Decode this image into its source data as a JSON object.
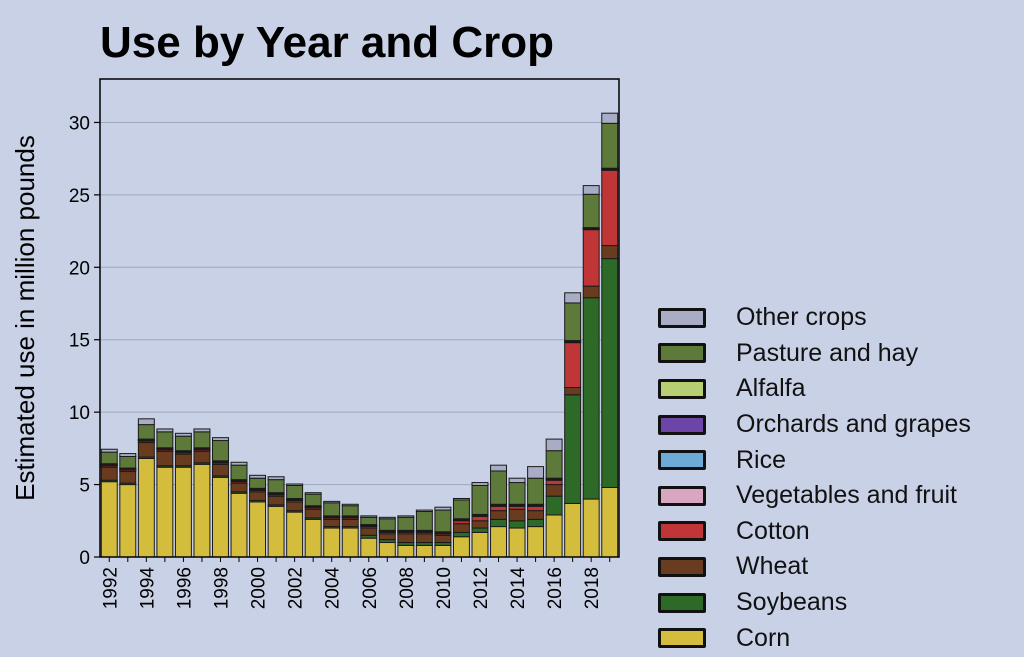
{
  "chart_data": {
    "type": "bar",
    "stacked": true,
    "title": "Use by Year and Crop",
    "ylabel": "Estimated use in million pounds",
    "xlabel": "",
    "ylim": [
      0,
      33
    ],
    "yticks": [
      0,
      5,
      10,
      15,
      20,
      25,
      30
    ],
    "grid": "horizontal",
    "legend_position": "right",
    "categories": [
      "1992",
      "1993",
      "1994",
      "1995",
      "1996",
      "1997",
      "1998",
      "1999",
      "2000",
      "2001",
      "2002",
      "2003",
      "2004",
      "2005",
      "2006",
      "2007",
      "2008",
      "2009",
      "2010",
      "2011",
      "2012",
      "2013",
      "2014",
      "2015",
      "2016",
      "2017",
      "2018",
      "2019"
    ],
    "xtick_labels": [
      "1992",
      "",
      "1994",
      "",
      "1996",
      "",
      "1998",
      "",
      "2000",
      "",
      "2002",
      "",
      "2004",
      "",
      "2006",
      "",
      "2008",
      "",
      "2010",
      "",
      "2012",
      "",
      "2014",
      "",
      "2016",
      "",
      "2018",
      ""
    ],
    "series": [
      {
        "name": "Corn",
        "color": "#d4bd3c",
        "values": [
          5.2,
          5.0,
          6.8,
          6.2,
          6.2,
          6.4,
          5.5,
          4.4,
          3.8,
          3.5,
          3.1,
          2.6,
          2.0,
          2.0,
          1.3,
          1.0,
          0.8,
          0.8,
          0.8,
          1.4,
          1.7,
          2.1,
          2.0,
          2.1,
          2.9,
          3.7,
          4.0,
          4.8
        ]
      },
      {
        "name": "Soybeans",
        "color": "#2e6a27",
        "values": [
          0.1,
          0.1,
          0.1,
          0.1,
          0.1,
          0.1,
          0.1,
          0.1,
          0.1,
          0.1,
          0.1,
          0.1,
          0.1,
          0.1,
          0.2,
          0.2,
          0.2,
          0.2,
          0.2,
          0.3,
          0.3,
          0.5,
          0.5,
          0.5,
          1.3,
          7.5,
          13.9,
          15.8
        ]
      },
      {
        "name": "Wheat",
        "color": "#6a3c1f",
        "values": [
          0.9,
          0.8,
          1.0,
          1.0,
          0.8,
          0.8,
          0.8,
          0.6,
          0.6,
          0.6,
          0.6,
          0.6,
          0.5,
          0.5,
          0.5,
          0.4,
          0.6,
          0.6,
          0.5,
          0.6,
          0.5,
          0.6,
          0.8,
          0.6,
          0.8,
          0.5,
          0.8,
          0.9
        ]
      },
      {
        "name": "Cotton",
        "color": "#c03535",
        "values": [
          0.1,
          0.1,
          0.1,
          0.1,
          0.1,
          0.1,
          0.1,
          0.1,
          0.1,
          0.1,
          0.1,
          0.1,
          0.1,
          0.1,
          0.1,
          0.1,
          0.1,
          0.1,
          0.1,
          0.2,
          0.3,
          0.3,
          0.2,
          0.3,
          0.3,
          3.1,
          3.9,
          5.2
        ]
      },
      {
        "name": "Vegetables and fruit",
        "color": "#d8a6c0",
        "values": [
          0.05,
          0.05,
          0.05,
          0.05,
          0.05,
          0.05,
          0.05,
          0.05,
          0.05,
          0.05,
          0.05,
          0.05,
          0.05,
          0.05,
          0.05,
          0.05,
          0.05,
          0.05,
          0.05,
          0.05,
          0.05,
          0.05,
          0.05,
          0.05,
          0.05,
          0.05,
          0.05,
          0.05
        ]
      },
      {
        "name": "Rice",
        "color": "#6eaad6",
        "values": [
          0.02,
          0.02,
          0.02,
          0.02,
          0.02,
          0.02,
          0.02,
          0.02,
          0.02,
          0.02,
          0.02,
          0.02,
          0.02,
          0.02,
          0.02,
          0.02,
          0.02,
          0.02,
          0.02,
          0.02,
          0.02,
          0.02,
          0.02,
          0.02,
          0.02,
          0.02,
          0.02,
          0.02
        ]
      },
      {
        "name": "Orchards and grapes",
        "color": "#6b46a8",
        "values": [
          0.02,
          0.02,
          0.02,
          0.02,
          0.02,
          0.02,
          0.02,
          0.02,
          0.02,
          0.02,
          0.02,
          0.02,
          0.02,
          0.02,
          0.02,
          0.02,
          0.02,
          0.02,
          0.02,
          0.02,
          0.02,
          0.02,
          0.02,
          0.02,
          0.02,
          0.02,
          0.02,
          0.02
        ]
      },
      {
        "name": "Alfalfa",
        "color": "#b7cf72",
        "values": [
          0.05,
          0.05,
          0.05,
          0.05,
          0.05,
          0.05,
          0.05,
          0.05,
          0.05,
          0.05,
          0.05,
          0.05,
          0.05,
          0.05,
          0.05,
          0.05,
          0.05,
          0.05,
          0.05,
          0.05,
          0.05,
          0.05,
          0.05,
          0.05,
          0.05,
          0.05,
          0.05,
          0.05
        ]
      },
      {
        "name": "Pasture and hay",
        "color": "#5d7a3a",
        "values": [
          0.8,
          0.8,
          1.0,
          1.1,
          1.0,
          1.1,
          1.4,
          1.0,
          0.7,
          0.9,
          0.9,
          0.8,
          0.9,
          0.7,
          0.5,
          0.8,
          0.9,
          1.3,
          1.5,
          1.3,
          2.0,
          2.3,
          1.5,
          1.8,
          1.9,
          2.6,
          2.3,
          3.1
        ]
      },
      {
        "name": "Other crops",
        "color": "#a8acc4",
        "values": [
          0.2,
          0.2,
          0.4,
          0.2,
          0.2,
          0.2,
          0.2,
          0.2,
          0.2,
          0.2,
          0.1,
          0.1,
          0.1,
          0.1,
          0.1,
          0.1,
          0.1,
          0.1,
          0.2,
          0.1,
          0.2,
          0.4,
          0.3,
          0.8,
          0.8,
          0.7,
          0.6,
          0.7
        ]
      }
    ]
  }
}
